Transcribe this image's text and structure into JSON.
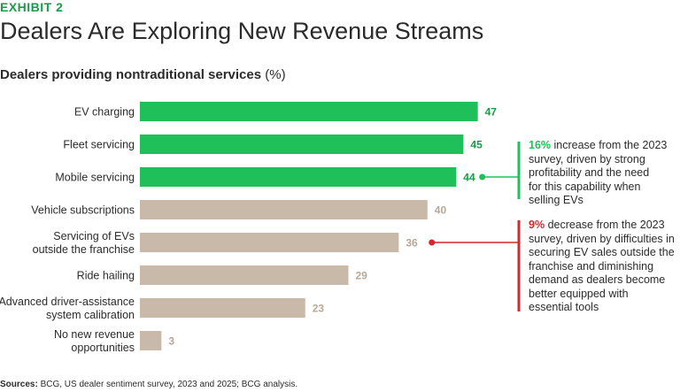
{
  "header": {
    "exhibit": "EXHIBIT 2",
    "title": "Dealers Are Exploring New Revenue Streams",
    "subtitle_main": "Dealers providing nontraditional services",
    "subtitle_unit": "(%)"
  },
  "chart_data": {
    "type": "bar",
    "orientation": "horizontal",
    "title": "Dealers providing nontraditional services (%)",
    "categories": [
      [
        "EV charging"
      ],
      [
        "Fleet servicing"
      ],
      [
        "Mobile servicing"
      ],
      [
        "Vehicle subscriptions"
      ],
      [
        "Servicing of EVs",
        "outside the franchise"
      ],
      [
        "Ride hailing"
      ],
      [
        "Advanced driver-assistance",
        "system calibration"
      ],
      [
        "No new revenue",
        "opportunities"
      ]
    ],
    "values": [
      47,
      45,
      44,
      40,
      36,
      29,
      23,
      3
    ],
    "value_labels": [
      "47",
      "45",
      "44",
      "40",
      "36",
      "29",
      "23",
      "3"
    ],
    "highlight": [
      true,
      true,
      true,
      false,
      false,
      false,
      false,
      false
    ],
    "xlim": [
      0,
      50
    ],
    "colors": {
      "highlight_bar": "#1fbf5a",
      "base_bar": "#c9b9a8",
      "highlight_label": "#1a9b47",
      "base_label": "#b8a898",
      "green_note": "#1fbf5a",
      "red_note": "#d7262c"
    }
  },
  "annotations": {
    "green": {
      "pct": "16%",
      "lines": [
        "increase from the 2023",
        "survey, driven by strong",
        "profitability and the need",
        "for this capability when",
        "selling EVs"
      ]
    },
    "red": {
      "pct": "9%",
      "lines": [
        "decrease from the 2023",
        "survey, driven by difficulties in",
        "securing EV sales outside the",
        "franchise and diminishing",
        "demand as dealers become",
        "better equipped with",
        "essential tools"
      ]
    }
  },
  "footer": {
    "source_label": "Sources:",
    "source_text": "BCG, US dealer sentiment survey, 2023 and 2025; BCG analysis."
  }
}
